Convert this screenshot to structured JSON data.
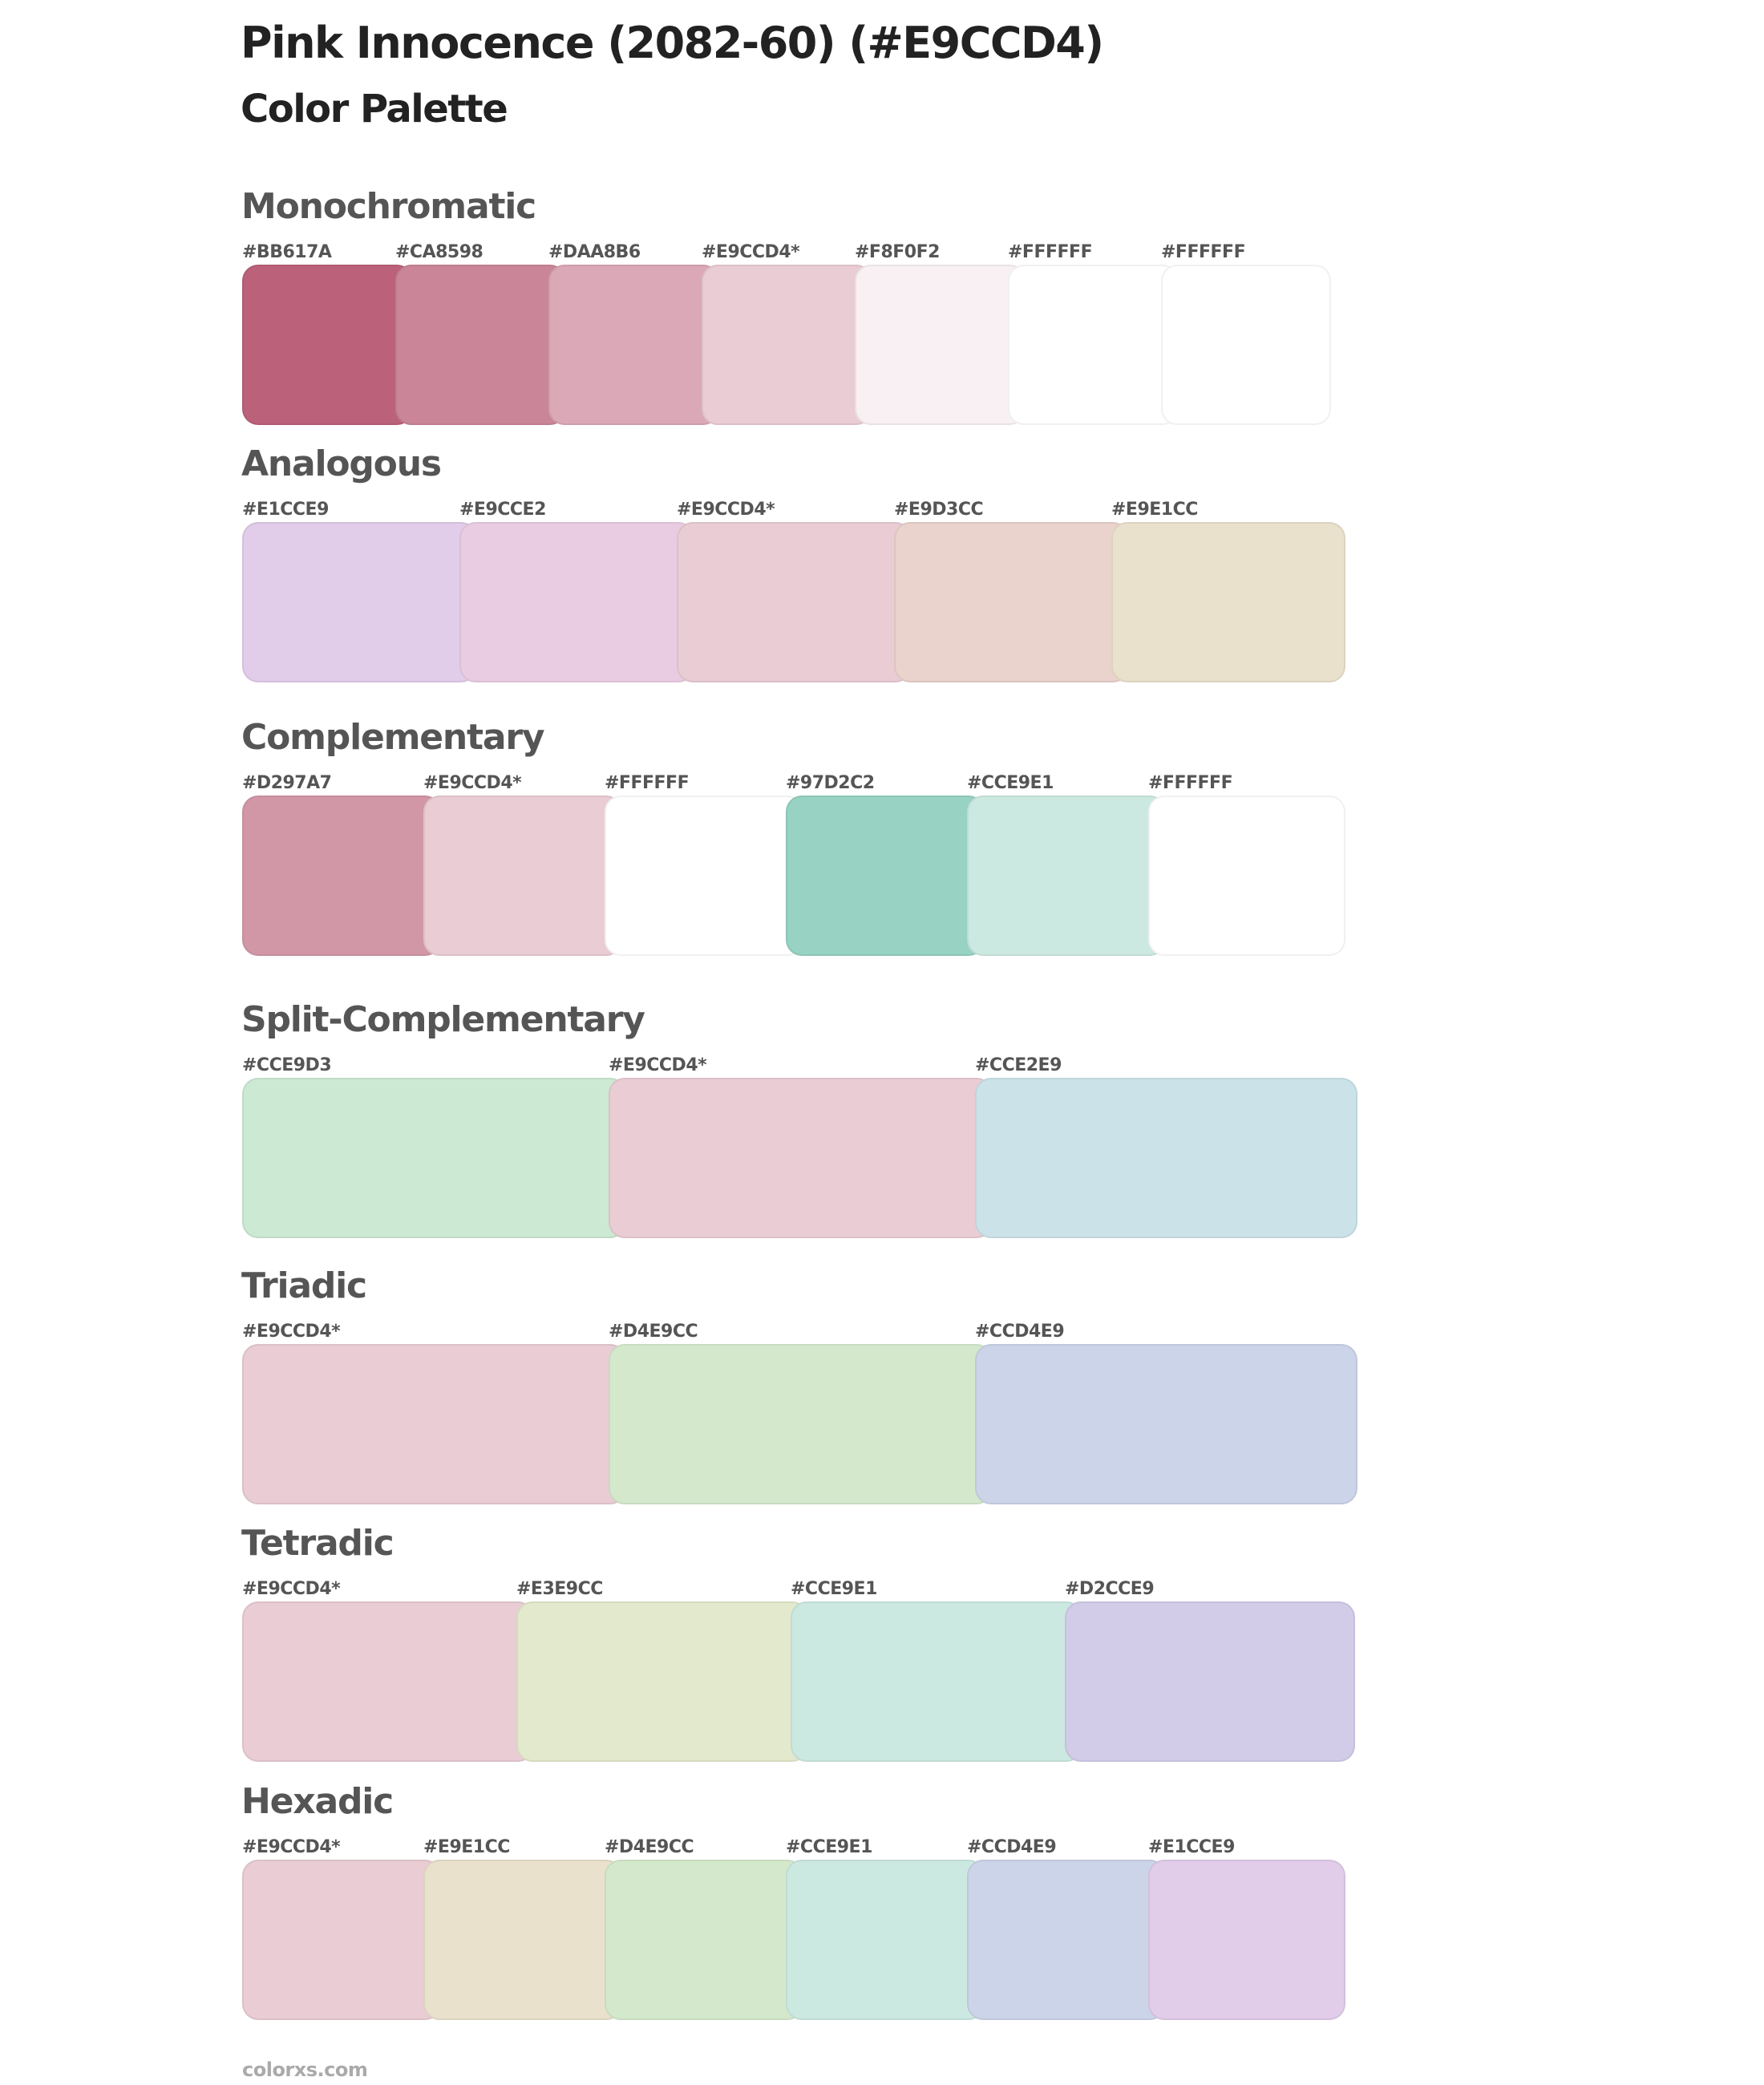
{
  "header": {
    "title": "Pink Innocence (2082-60) (#E9CCD4)",
    "subtitle": "Color Palette"
  },
  "palettes": [
    {
      "name": "Monochromatic",
      "colors": [
        {
          "label": "#BB617A",
          "hex": "#BB617A"
        },
        {
          "label": "#CA8598",
          "hex": "#CA8598"
        },
        {
          "label": "#DAA8B6",
          "hex": "#DAA8B6"
        },
        {
          "label": "#E9CCD4*",
          "hex": "#E9CCD4"
        },
        {
          "label": "#F8F0F2",
          "hex": "#F8F0F2"
        },
        {
          "label": "#FFFFFF",
          "hex": "#FFFFFF"
        },
        {
          "label": "#FFFFFF",
          "hex": "#FFFFFF"
        }
      ]
    },
    {
      "name": "Analogous",
      "colors": [
        {
          "label": "#E1CCE9",
          "hex": "#E1CCE9"
        },
        {
          "label": "#E9CCE2",
          "hex": "#E9CCE2"
        },
        {
          "label": "#E9CCD4*",
          "hex": "#E9CCD4"
        },
        {
          "label": "#E9D3CC",
          "hex": "#E9D3CC"
        },
        {
          "label": "#E9E1CC",
          "hex": "#E9E1CC"
        }
      ]
    },
    {
      "name": "Complementary",
      "colors": [
        {
          "label": "#D297A7",
          "hex": "#D297A7"
        },
        {
          "label": "#E9CCD4*",
          "hex": "#E9CCD4"
        },
        {
          "label": "#FFFFFF",
          "hex": "#FFFFFF"
        },
        {
          "label": "#97D2C2",
          "hex": "#97D2C2"
        },
        {
          "label": "#CCE9E1",
          "hex": "#CCE9E1"
        },
        {
          "label": "#FFFFFF",
          "hex": "#FFFFFF"
        }
      ]
    },
    {
      "name": "Split-Complementary",
      "colors": [
        {
          "label": "#CCE9D3",
          "hex": "#CCE9D3"
        },
        {
          "label": "#E9CCD4*",
          "hex": "#E9CCD4"
        },
        {
          "label": "#CCE2E9",
          "hex": "#CCE2E9"
        }
      ]
    },
    {
      "name": "Triadic",
      "colors": [
        {
          "label": "#E9CCD4*",
          "hex": "#E9CCD4"
        },
        {
          "label": "#D4E9CC",
          "hex": "#D4E9CC"
        },
        {
          "label": "#CCD4E9",
          "hex": "#CCD4E9"
        }
      ]
    },
    {
      "name": "Tetradic",
      "colors": [
        {
          "label": "#E9CCD4*",
          "hex": "#E9CCD4"
        },
        {
          "label": "#E3E9CC",
          "hex": "#E3E9CC"
        },
        {
          "label": "#CCE9E1",
          "hex": "#CCE9E1"
        },
        {
          "label": "#D2CCE9",
          "hex": "#D2CCE9"
        }
      ]
    },
    {
      "name": "Hexadic",
      "colors": [
        {
          "label": "#E9CCD4*",
          "hex": "#E9CCD4"
        },
        {
          "label": "#E9E1CC",
          "hex": "#E9E1CC"
        },
        {
          "label": "#D4E9CC",
          "hex": "#D4E9CC"
        },
        {
          "label": "#CCE9E1",
          "hex": "#CCE9E1"
        },
        {
          "label": "#CCD4E9",
          "hex": "#CCD4E9"
        },
        {
          "label": "#E1CCE9",
          "hex": "#E1CCE9"
        }
      ]
    }
  ],
  "footer": {
    "site": "colorxs.com"
  }
}
